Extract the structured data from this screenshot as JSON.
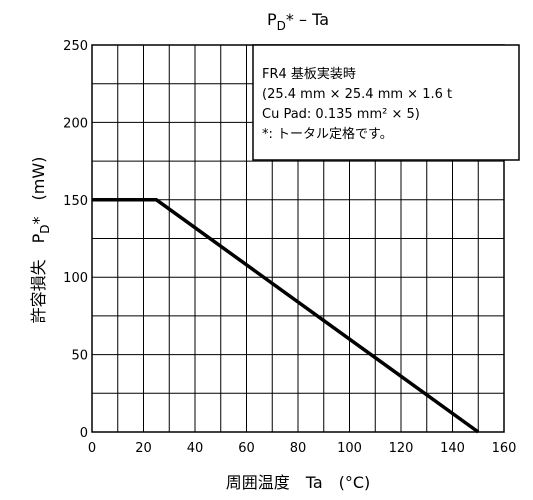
{
  "chart_data": {
    "type": "line",
    "title": {
      "main": "P",
      "sub": "D",
      "suffix": "* – Ta"
    },
    "xlabel": "周囲温度　Ta　(°C)",
    "ylabel": {
      "pre": "許容損失　P",
      "sub": "D",
      "post": "*　(mW)"
    },
    "xlim": [
      0,
      160
    ],
    "ylim": [
      0,
      250
    ],
    "xticks": [
      0,
      20,
      40,
      60,
      80,
      100,
      120,
      140,
      160
    ],
    "yticks": [
      0,
      50,
      100,
      150,
      200,
      250
    ],
    "grid": true,
    "series": [
      {
        "x": [
          0,
          25,
          150
        ],
        "y": [
          150,
          150,
          0
        ],
        "color": "#000000"
      }
    ],
    "annotation": {
      "lines": [
        "FR4 基板実装時",
        "(25.4 mm × 25.4 mm × 1.6 t",
        "Cu Pad: 0.135 mm² × 5)",
        "*:  トータル定格です。"
      ],
      "position": "top-right"
    }
  }
}
